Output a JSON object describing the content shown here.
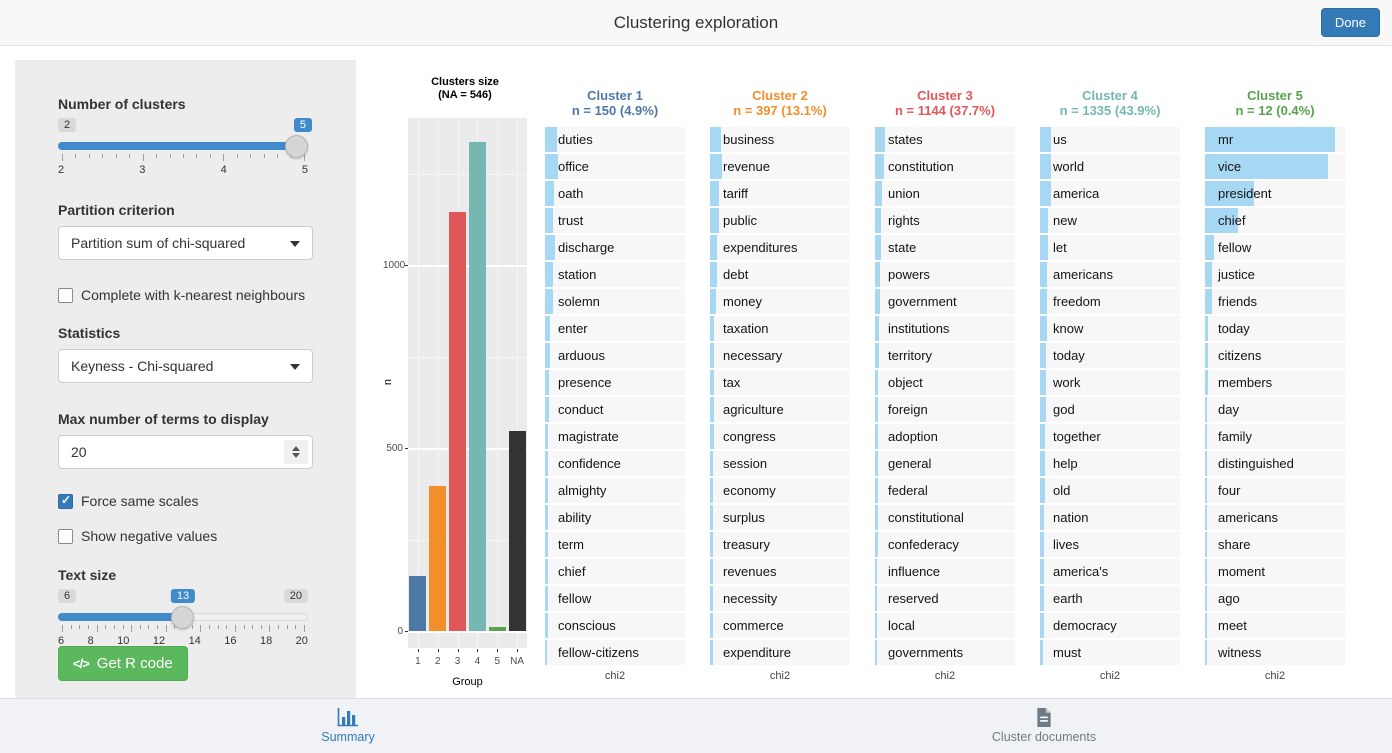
{
  "header": {
    "title": "Clustering exploration",
    "done_label": "Done",
    "accent_color": "#337ab7"
  },
  "sidebar": {
    "clusters_slider": {
      "label": "Number of clusters",
      "min": "2",
      "max": "5",
      "value": "5",
      "ticks": [
        "2",
        "3",
        "4",
        "5"
      ]
    },
    "partition": {
      "label": "Partition criterion",
      "value": "Partition sum of chi-squared"
    },
    "knn_checkbox": {
      "label": "Complete with k-nearest neighbours",
      "checked": false
    },
    "statistics": {
      "label": "Statistics",
      "value": "Keyness - Chi-squared"
    },
    "max_terms": {
      "label": "Max number of terms to display",
      "value": "20"
    },
    "force_scales": {
      "label": "Force same scales",
      "checked": true
    },
    "negative_values": {
      "label": "Show negative values",
      "checked": false
    },
    "text_size": {
      "label": "Text size",
      "min": "6",
      "max": "20",
      "value": "13",
      "ticks": [
        "6",
        "8",
        "10",
        "12",
        "14",
        "16",
        "18",
        "20"
      ]
    },
    "r_code_button": {
      "label": "Get R code",
      "icon": "code-icon",
      "color": "#5cb85c"
    }
  },
  "chart_data": [
    {
      "type": "bar",
      "title": "Clusters size",
      "subtitle": "(NA = 546)",
      "categories": [
        "1",
        "2",
        "3",
        "4",
        "5",
        "NA"
      ],
      "values": [
        150,
        397,
        1144,
        1335,
        12,
        546
      ],
      "colors": [
        "#4E79A7",
        "#F28E2B",
        "#E15759",
        "#76B7B2",
        "#59A14F",
        "#333333"
      ],
      "xlabel": "Group",
      "ylabel": "n",
      "ylim": [
        0,
        1400
      ],
      "yticks": [
        0,
        500,
        1000
      ],
      "minor_gridlines": [
        250,
        750,
        1250
      ],
      "panel_background": "#ebebeb",
      "grid": true
    },
    {
      "type": "bar",
      "orientation": "horizontal",
      "stat_label": "chi2",
      "bar_color": "#a6d7f3",
      "note": "values are relative bar lengths (0-1) read from pixels; same scale forced across clusters",
      "series": [
        {
          "name": "Cluster 1",
          "color": "#4E79A7",
          "n_label": "n = 150 (4.9%)",
          "terms": [
            {
              "term": "duties",
              "value": 0.088
            },
            {
              "term": "office",
              "value": 0.097
            },
            {
              "term": "oath",
              "value": 0.066
            },
            {
              "term": "trust",
              "value": 0.058
            },
            {
              "term": "discharge",
              "value": 0.075
            },
            {
              "term": "station",
              "value": 0.061
            },
            {
              "term": "solemn",
              "value": 0.061
            },
            {
              "term": "enter",
              "value": 0.036
            },
            {
              "term": "arduous",
              "value": 0.034
            },
            {
              "term": "presence",
              "value": 0.029
            },
            {
              "term": "conduct",
              "value": 0.027
            },
            {
              "term": "magistrate",
              "value": 0.024
            },
            {
              "term": "confidence",
              "value": 0.024
            },
            {
              "term": "almighty",
              "value": 0.022
            },
            {
              "term": "ability",
              "value": 0.022
            },
            {
              "term": "term",
              "value": 0.02
            },
            {
              "term": "chief",
              "value": 0.02
            },
            {
              "term": "fellow",
              "value": 0.02
            },
            {
              "term": "conscious",
              "value": 0.02
            },
            {
              "term": "fellow-citizens",
              "value": 0.017
            }
          ]
        },
        {
          "name": "Cluster 2",
          "color": "#F28E2B",
          "n_label": "n = 397 (13.1%)",
          "terms": [
            {
              "term": "business",
              "value": 0.083
            },
            {
              "term": "revenue",
              "value": 0.088
            },
            {
              "term": "tariff",
              "value": 0.063
            },
            {
              "term": "public",
              "value": 0.068
            },
            {
              "term": "expenditures",
              "value": 0.049
            },
            {
              "term": "debt",
              "value": 0.049
            },
            {
              "term": "money",
              "value": 0.041
            },
            {
              "term": "taxation",
              "value": 0.032
            },
            {
              "term": "necessary",
              "value": 0.029
            },
            {
              "term": "tax",
              "value": 0.029
            },
            {
              "term": "agriculture",
              "value": 0.029
            },
            {
              "term": "congress",
              "value": 0.027
            },
            {
              "term": "session",
              "value": 0.024
            },
            {
              "term": "economy",
              "value": 0.024
            },
            {
              "term": "surplus",
              "value": 0.024
            },
            {
              "term": "treasury",
              "value": 0.022
            },
            {
              "term": "revenues",
              "value": 0.022
            },
            {
              "term": "necessity",
              "value": 0.022
            },
            {
              "term": "commerce",
              "value": 0.02
            },
            {
              "term": "expenditure",
              "value": 0.02
            }
          ]
        },
        {
          "name": "Cluster 3",
          "color": "#E15759",
          "n_label": "n = 1144 (37.7%)",
          "terms": [
            {
              "term": "states",
              "value": 0.073
            },
            {
              "term": "constitution",
              "value": 0.063
            },
            {
              "term": "union",
              "value": 0.053
            },
            {
              "term": "rights",
              "value": 0.044
            },
            {
              "term": "state",
              "value": 0.044
            },
            {
              "term": "powers",
              "value": 0.036
            },
            {
              "term": "government",
              "value": 0.036
            },
            {
              "term": "institutions",
              "value": 0.029
            },
            {
              "term": "territory",
              "value": 0.027
            },
            {
              "term": "object",
              "value": 0.024
            },
            {
              "term": "foreign",
              "value": 0.022
            },
            {
              "term": "adoption",
              "value": 0.022
            },
            {
              "term": "general",
              "value": 0.02
            },
            {
              "term": "federal",
              "value": 0.02
            },
            {
              "term": "constitutional",
              "value": 0.02
            },
            {
              "term": "confederacy",
              "value": 0.02
            },
            {
              "term": "influence",
              "value": 0.017
            },
            {
              "term": "reserved",
              "value": 0.017
            },
            {
              "term": "local",
              "value": 0.017
            },
            {
              "term": "governments",
              "value": 0.017
            }
          ]
        },
        {
          "name": "Cluster 4",
          "color": "#76B7B2",
          "n_label": "n = 1335 (43.9%)",
          "terms": [
            {
              "term": "us",
              "value": 0.083
            },
            {
              "term": "world",
              "value": 0.078
            },
            {
              "term": "america",
              "value": 0.078
            },
            {
              "term": "new",
              "value": 0.058
            },
            {
              "term": "let",
              "value": 0.058
            },
            {
              "term": "americans",
              "value": 0.053
            },
            {
              "term": "freedom",
              "value": 0.051
            },
            {
              "term": "know",
              "value": 0.049
            },
            {
              "term": "today",
              "value": 0.047
            },
            {
              "term": "work",
              "value": 0.044
            },
            {
              "term": "god",
              "value": 0.041
            },
            {
              "term": "together",
              "value": 0.039
            },
            {
              "term": "help",
              "value": 0.037
            },
            {
              "term": "old",
              "value": 0.034
            },
            {
              "term": "nation",
              "value": 0.032
            },
            {
              "term": "lives",
              "value": 0.032
            },
            {
              "term": "america's",
              "value": 0.029
            },
            {
              "term": "earth",
              "value": 0.029
            },
            {
              "term": "democracy",
              "value": 0.027
            },
            {
              "term": "must",
              "value": 0.024
            }
          ]
        },
        {
          "name": "Cluster 5",
          "color": "#59A14F",
          "n_label": "n = 12 (0.4%)",
          "terms": [
            {
              "term": "mr",
              "value": 0.95
            },
            {
              "term": "vice",
              "value": 0.9
            },
            {
              "term": "president",
              "value": 0.36
            },
            {
              "term": "chief",
              "value": 0.24
            },
            {
              "term": "fellow",
              "value": 0.063
            },
            {
              "term": "justice",
              "value": 0.053
            },
            {
              "term": "friends",
              "value": 0.049
            },
            {
              "term": "today",
              "value": 0.024
            },
            {
              "term": "citizens",
              "value": 0.02
            },
            {
              "term": "members",
              "value": 0.02
            },
            {
              "term": "day",
              "value": 0.017
            },
            {
              "term": "family",
              "value": 0.015
            },
            {
              "term": "distinguished",
              "value": 0.015
            },
            {
              "term": "four",
              "value": 0.012
            },
            {
              "term": "americans",
              "value": 0.012
            },
            {
              "term": "share",
              "value": 0.01
            },
            {
              "term": "moment",
              "value": 0.01
            },
            {
              "term": "ago",
              "value": 0.01
            },
            {
              "term": "meet",
              "value": 0.01
            },
            {
              "term": "witness",
              "value": 0.007
            }
          ]
        }
      ]
    }
  ],
  "footer": {
    "tabs": [
      {
        "label": "Summary",
        "icon": "bar-chart-icon",
        "active": true
      },
      {
        "label": "Cluster documents",
        "icon": "document-icon",
        "active": false
      }
    ]
  }
}
